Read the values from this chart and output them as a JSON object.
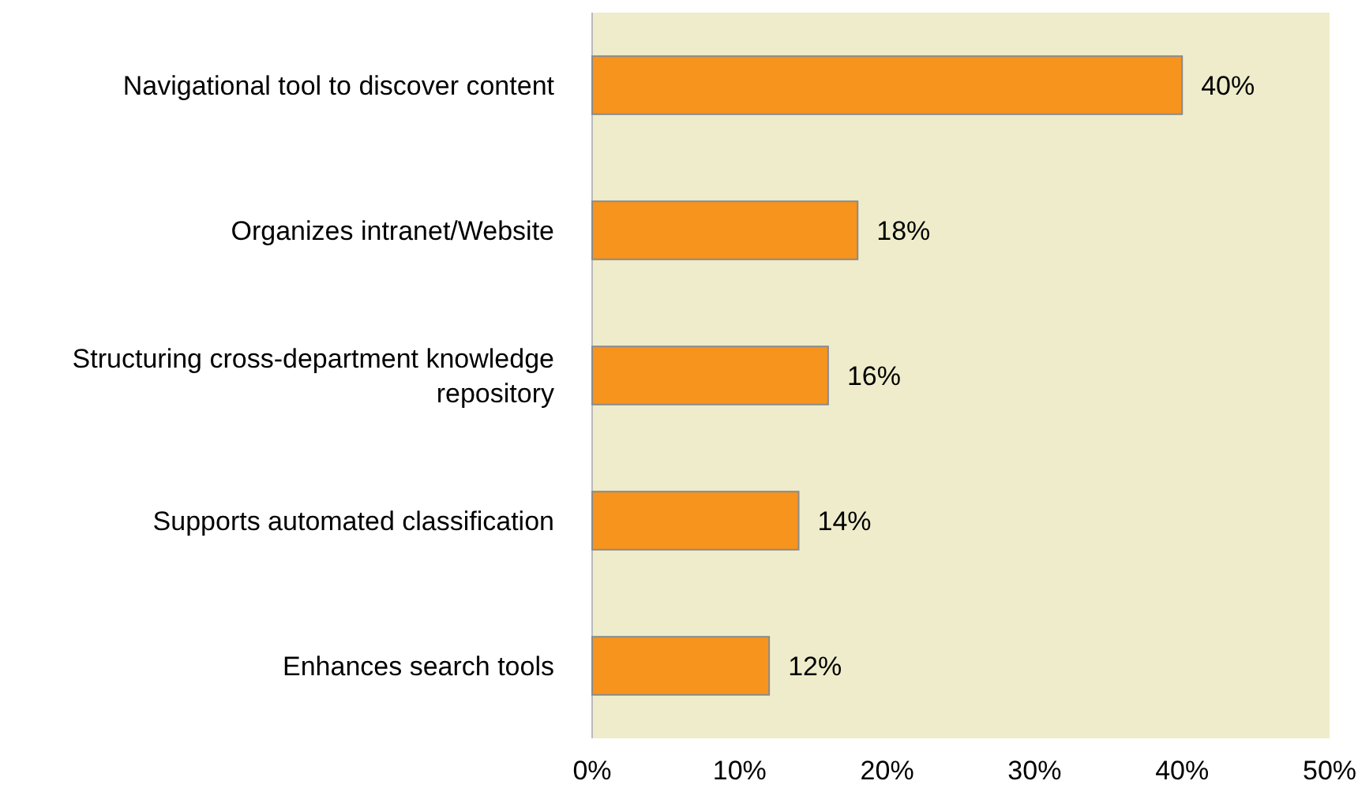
{
  "chart_data": {
    "type": "bar",
    "orientation": "horizontal",
    "categories": [
      "Navigational tool to discover content",
      "Organizes intranet/Website",
      "Structuring cross-department knowledge repository",
      "Supports automated classification",
      "Enhances search tools"
    ],
    "values": [
      40,
      18,
      16,
      14,
      12
    ],
    "value_labels": [
      "40%",
      "18%",
      "16%",
      "14%",
      "12%"
    ],
    "color": "#f7941d",
    "xlim": [
      0,
      50
    ],
    "xticks": [
      {
        "value": 0,
        "label": "0%"
      },
      {
        "value": 10,
        "label": "10%"
      },
      {
        "value": 20,
        "label": "20%"
      },
      {
        "value": 30,
        "label": "30%"
      },
      {
        "value": 40,
        "label": "40%"
      },
      {
        "value": 50,
        "label": "50%"
      }
    ],
    "grid": false
  }
}
